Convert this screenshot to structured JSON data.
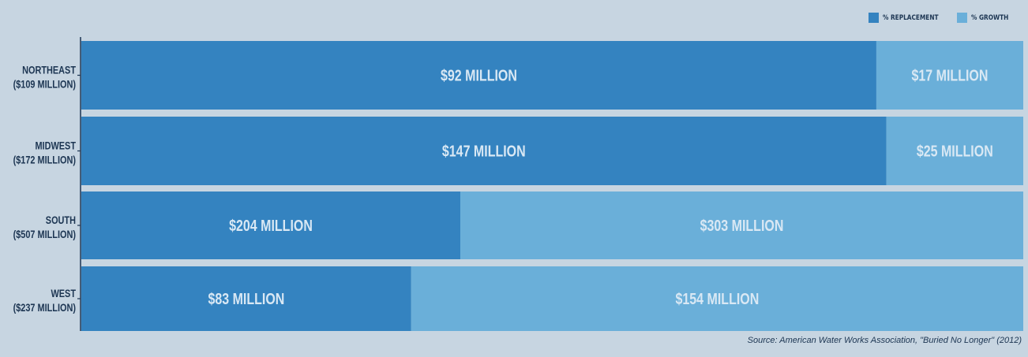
{
  "chart_data": {
    "type": "bar",
    "orientation": "horizontal",
    "stacked": true,
    "categories": [
      "NORTHEAST",
      "MIDWEST",
      "SOUTH",
      "WEST"
    ],
    "category_totals": [
      "($109 MILLION)",
      "($172 MILLION)",
      "($507 MILLION)",
      "($237 MILLION)"
    ],
    "series": [
      {
        "name": "% REPLACEMENT",
        "color": "#3483c0",
        "values": [
          92,
          147,
          204,
          83
        ],
        "labels": [
          "$92 MILLION",
          "$147 MILLION",
          "$204 MILLION",
          "$83 MILLION"
        ]
      },
      {
        "name": "% GROWTH",
        "color": "#6aafd9",
        "values": [
          17,
          25,
          303,
          154
        ],
        "labels": [
          "$17 MILLION",
          "$25 MILLION",
          "$303 MILLION",
          "$154 MILLION"
        ]
      }
    ],
    "legend_position": "top-right",
    "grid": false,
    "source": "Source: American Water Works Association, \"Buried No Longer\" (2012)"
  },
  "colors": {
    "background": "#c7d5e1",
    "text": "#1c3552",
    "bar_label": "#d9e8f4"
  }
}
